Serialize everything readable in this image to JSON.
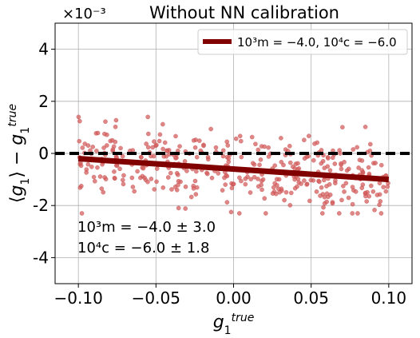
{
  "chart_data": {
    "type": "scatter",
    "title": "Without NN calibration",
    "xlabel": "g_1^{true}",
    "ylabel": "⟨g_1⟩ − g_1^{true}",
    "y_multiplier": "×10⁻³",
    "xlim": [
      -0.115,
      0.115
    ],
    "ylim": [
      -5,
      5
    ],
    "x_ticks": [
      -0.1,
      -0.05,
      0.0,
      0.05,
      0.1
    ],
    "x_tick_labels": [
      "−0.10",
      "−0.05",
      "0.00",
      "0.05",
      "0.10"
    ],
    "y_ticks": [
      4,
      2,
      0,
      -2,
      -4
    ],
    "y_tick_labels": [
      "4",
      "2",
      "0",
      "-2",
      "-4"
    ],
    "grid": true,
    "legend_position": "top-right",
    "series": [
      {
        "kind": "fit-line",
        "name": "10³m = −4.0, 10⁴c = −6.0",
        "color": "#800000",
        "x": [
          -0.1,
          0.1
        ],
        "y": [
          -0.2,
          -1.0
        ]
      },
      {
        "kind": "reference-line",
        "color": "#000000",
        "y": 0
      },
      {
        "kind": "scatter",
        "color": "#d45f5f",
        "point_count": 400,
        "x_range": [
          -0.1,
          0.1
        ],
        "y_center_offset_x1e3": -0.6,
        "y_spread_x1e3": [
          -2.3,
          1.4
        ]
      }
    ],
    "annotations": [
      "10³m = −4.0 ± 3.0",
      "10⁴c = −6.0 ± 1.8"
    ]
  }
}
